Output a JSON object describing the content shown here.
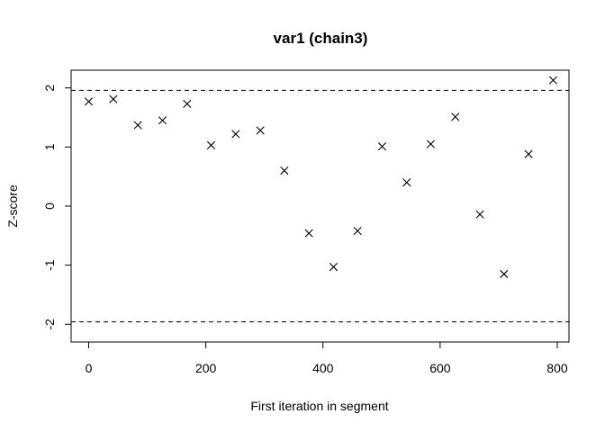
{
  "chart_data": {
    "type": "scatter",
    "title": "var1 (chain3)",
    "xlabel": "First iteration in segment",
    "ylabel": "Z-score",
    "xlim": [
      -30,
      820
    ],
    "ylim": [
      -2.3,
      2.3
    ],
    "x_ticks": [
      0,
      200,
      400,
      600,
      800
    ],
    "y_ticks": [
      -2,
      -1,
      0,
      1,
      2
    ],
    "x_tick_labels": [
      "0",
      "200",
      "400",
      "600",
      "800"
    ],
    "y_tick_labels": [
      "-2",
      "-1",
      "0",
      "1",
      "2"
    ],
    "marker": "x",
    "reference_lines": [
      1.96,
      -1.96
    ],
    "grid": false,
    "points": [
      {
        "x": 0,
        "y": 1.77
      },
      {
        "x": 42,
        "y": 1.81
      },
      {
        "x": 84,
        "y": 1.37
      },
      {
        "x": 126,
        "y": 1.45
      },
      {
        "x": 168,
        "y": 1.73
      },
      {
        "x": 209,
        "y": 1.03
      },
      {
        "x": 251,
        "y": 1.22
      },
      {
        "x": 293,
        "y": 1.28
      },
      {
        "x": 334,
        "y": 0.6
      },
      {
        "x": 376,
        "y": -0.46
      },
      {
        "x": 418,
        "y": -1.03
      },
      {
        "x": 459,
        "y": -0.42
      },
      {
        "x": 501,
        "y": 1.01
      },
      {
        "x": 543,
        "y": 0.4
      },
      {
        "x": 584,
        "y": 1.05
      },
      {
        "x": 626,
        "y": 1.51
      },
      {
        "x": 668,
        "y": -0.14
      },
      {
        "x": 709,
        "y": -1.15
      },
      {
        "x": 751,
        "y": 0.88
      },
      {
        "x": 793,
        "y": 2.13
      }
    ]
  }
}
